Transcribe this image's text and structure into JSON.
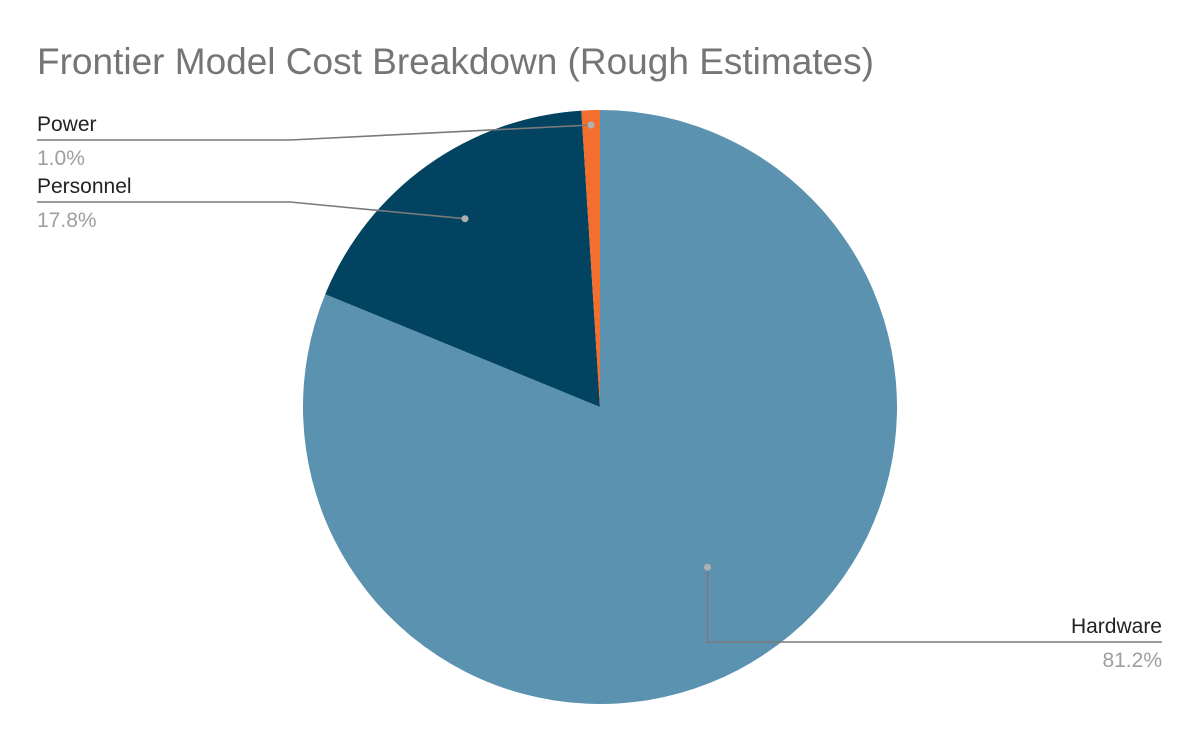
{
  "chart_data": {
    "type": "pie",
    "title": "Frontier Model Cost Breakdown (Rough Estimates)",
    "slices": [
      {
        "label": "Hardware",
        "value": 81.2,
        "display": "81.2%",
        "color": "#5a92af"
      },
      {
        "label": "Personnel",
        "value": 17.8,
        "display": "17.8%",
        "color": "#014361"
      },
      {
        "label": "Power",
        "value": 1.0,
        "display": "1.0%",
        "color": "#f46f2e"
      }
    ],
    "start_angle_deg": 0,
    "direction": "clockwise"
  }
}
